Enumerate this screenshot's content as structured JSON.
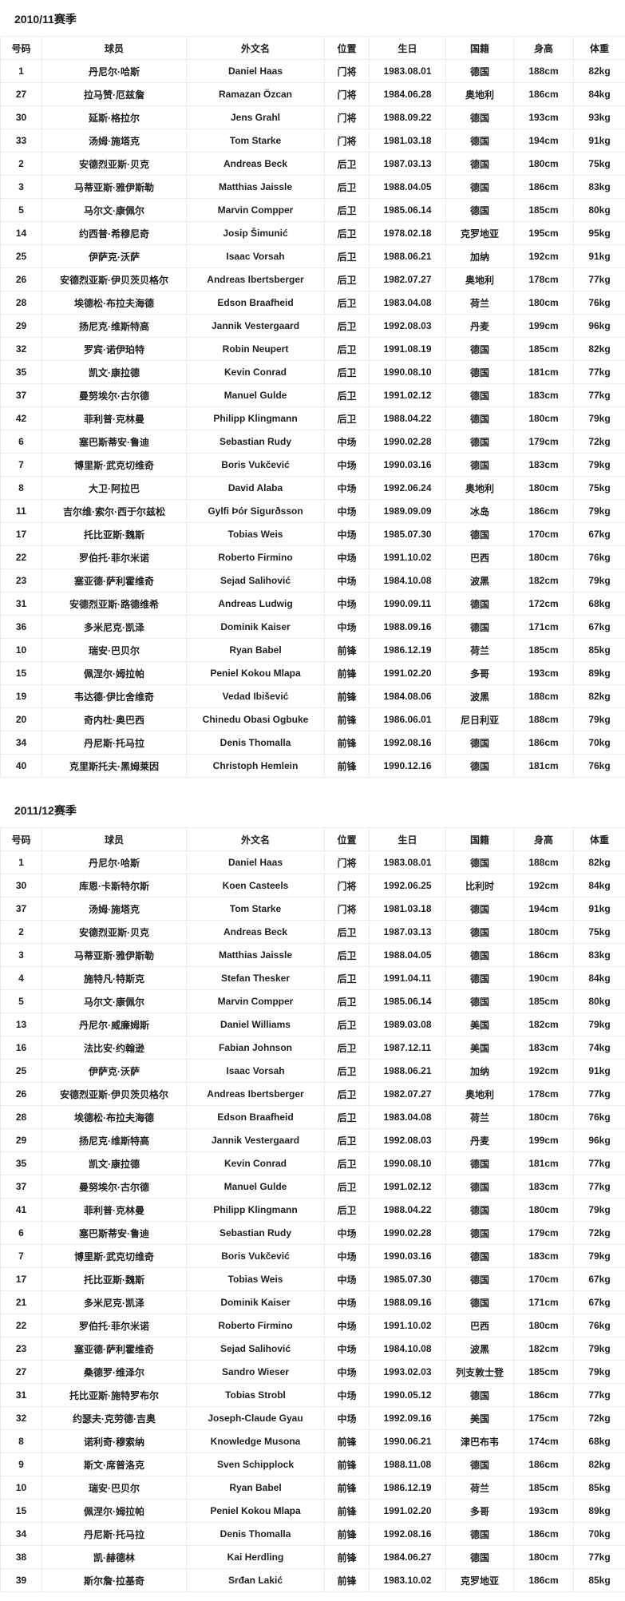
{
  "page": {
    "background": "#ffffff",
    "border_color": "#ececec",
    "text_color": "#1f1f1f"
  },
  "columns": [
    "号码",
    "球员",
    "外文名",
    "位置",
    "生日",
    "国籍",
    "身高",
    "体重"
  ],
  "sections": [
    {
      "title": "2010/11赛季",
      "rows": [
        [
          "1",
          "丹尼尔·哈斯",
          "Daniel Haas",
          "门将",
          "1983.08.01",
          "德国",
          "188cm",
          "82kg"
        ],
        [
          "27",
          "拉马赞·厄兹詹",
          "Ramazan Özcan",
          "门将",
          "1984.06.28",
          "奥地利",
          "186cm",
          "84kg"
        ],
        [
          "30",
          "延斯·格拉尔",
          "Jens Grahl",
          "门将",
          "1988.09.22",
          "德国",
          "193cm",
          "93kg"
        ],
        [
          "33",
          "汤姆·施塔克",
          "Tom Starke",
          "门将",
          "1981.03.18",
          "德国",
          "194cm",
          "91kg"
        ],
        [
          "2",
          "安德烈亚斯·贝克",
          "Andreas Beck",
          "后卫",
          "1987.03.13",
          "德国",
          "180cm",
          "75kg"
        ],
        [
          "3",
          "马蒂亚斯·雅伊斯勒",
          "Matthias Jaissle",
          "后卫",
          "1988.04.05",
          "德国",
          "186cm",
          "83kg"
        ],
        [
          "5",
          "马尔文·康佩尔",
          "Marvin Compper",
          "后卫",
          "1985.06.14",
          "德国",
          "185cm",
          "80kg"
        ],
        [
          "14",
          "约西普·希穆尼奇",
          "Josip Šimunić",
          "后卫",
          "1978.02.18",
          "克罗地亚",
          "195cm",
          "95kg"
        ],
        [
          "25",
          "伊萨克·沃萨",
          "Isaac Vorsah",
          "后卫",
          "1988.06.21",
          "加纳",
          "192cm",
          "91kg"
        ],
        [
          "26",
          "安德烈亚斯·伊贝茨贝格尔",
          "Andreas Ibertsberger",
          "后卫",
          "1982.07.27",
          "奥地利",
          "178cm",
          "77kg"
        ],
        [
          "28",
          "埃德松·布拉夫海德",
          "Edson Braafheid",
          "后卫",
          "1983.04.08",
          "荷兰",
          "180cm",
          "76kg"
        ],
        [
          "29",
          "扬尼克·维斯特高",
          "Jannik Vestergaard",
          "后卫",
          "1992.08.03",
          "丹麦",
          "199cm",
          "96kg"
        ],
        [
          "32",
          "罗宾·诺伊珀特",
          "Robin Neupert",
          "后卫",
          "1991.08.19",
          "德国",
          "185cm",
          "82kg"
        ],
        [
          "35",
          "凯文·康拉德",
          "Kevin Conrad",
          "后卫",
          "1990.08.10",
          "德国",
          "181cm",
          "77kg"
        ],
        [
          "37",
          "曼努埃尔·古尔德",
          "Manuel Gulde",
          "后卫",
          "1991.02.12",
          "德国",
          "183cm",
          "77kg"
        ],
        [
          "42",
          "菲利普·克林曼",
          "Philipp Klingmann",
          "后卫",
          "1988.04.22",
          "德国",
          "180cm",
          "79kg"
        ],
        [
          "6",
          "塞巴斯蒂安·鲁迪",
          "Sebastian Rudy",
          "中场",
          "1990.02.28",
          "德国",
          "179cm",
          "72kg"
        ],
        [
          "7",
          "博里斯·武克切维奇",
          "Boris Vukčević",
          "中场",
          "1990.03.16",
          "德国",
          "183cm",
          "79kg"
        ],
        [
          "8",
          "大卫·阿拉巴",
          "David Alaba",
          "中场",
          "1992.06.24",
          "奥地利",
          "180cm",
          "75kg"
        ],
        [
          "11",
          "吉尔维·索尔·西于尔兹松",
          "Gylfi Þór Sigurðsson",
          "中场",
          "1989.09.09",
          "冰岛",
          "186cm",
          "79kg"
        ],
        [
          "17",
          "托比亚斯·魏斯",
          "Tobias Weis",
          "中场",
          "1985.07.30",
          "德国",
          "170cm",
          "67kg"
        ],
        [
          "22",
          "罗伯托·菲尔米诺",
          "Roberto Firmino",
          "中场",
          "1991.10.02",
          "巴西",
          "180cm",
          "76kg"
        ],
        [
          "23",
          "塞亚德·萨利霍维奇",
          "Sejad Salihović",
          "中场",
          "1984.10.08",
          "波黑",
          "182cm",
          "79kg"
        ],
        [
          "31",
          "安德烈亚斯·路德维希",
          "Andreas Ludwig",
          "中场",
          "1990.09.11",
          "德国",
          "172cm",
          "68kg"
        ],
        [
          "36",
          "多米尼克·凯泽",
          "Dominik Kaiser",
          "中场",
          "1988.09.16",
          "德国",
          "171cm",
          "67kg"
        ],
        [
          "10",
          "瑞安·巴贝尔",
          "Ryan Babel",
          "前锋",
          "1986.12.19",
          "荷兰",
          "185cm",
          "85kg"
        ],
        [
          "15",
          "佩涅尔·姆拉帕",
          "Peniel Kokou Mlapa",
          "前锋",
          "1991.02.20",
          "多哥",
          "193cm",
          "89kg"
        ],
        [
          "19",
          "韦达德·伊比舍维奇",
          "Vedad Ibišević",
          "前锋",
          "1984.08.06",
          "波黑",
          "188cm",
          "82kg"
        ],
        [
          "20",
          "奇内杜·奥巴西",
          "Chinedu Obasi Ogbuke",
          "前锋",
          "1986.06.01",
          "尼日利亚",
          "188cm",
          "79kg"
        ],
        [
          "34",
          "丹尼斯·托马拉",
          "Denis Thomalla",
          "前锋",
          "1992.08.16",
          "德国",
          "186cm",
          "70kg"
        ],
        [
          "40",
          "克里斯托夫·黑姆莱因",
          "Christoph Hemlein",
          "前锋",
          "1990.12.16",
          "德国",
          "181cm",
          "76kg"
        ]
      ]
    },
    {
      "title": "2011/12赛季",
      "rows": [
        [
          "1",
          "丹尼尔·哈斯",
          "Daniel Haas",
          "门将",
          "1983.08.01",
          "德国",
          "188cm",
          "82kg"
        ],
        [
          "30",
          "库恩·卡斯特尔斯",
          "Koen Casteels",
          "门将",
          "1992.06.25",
          "比利时",
          "192cm",
          "84kg"
        ],
        [
          "37",
          "汤姆·施塔克",
          "Tom Starke",
          "门将",
          "1981.03.18",
          "德国",
          "194cm",
          "91kg"
        ],
        [
          "2",
          "安德烈亚斯·贝克",
          "Andreas Beck",
          "后卫",
          "1987.03.13",
          "德国",
          "180cm",
          "75kg"
        ],
        [
          "3",
          "马蒂亚斯·雅伊斯勒",
          "Matthias Jaissle",
          "后卫",
          "1988.04.05",
          "德国",
          "186cm",
          "83kg"
        ],
        [
          "4",
          "施特凡·特斯克",
          "Stefan Thesker",
          "后卫",
          "1991.04.11",
          "德国",
          "190cm",
          "84kg"
        ],
        [
          "5",
          "马尔文·康佩尔",
          "Marvin Compper",
          "后卫",
          "1985.06.14",
          "德国",
          "185cm",
          "80kg"
        ],
        [
          "13",
          "丹尼尔·威廉姆斯",
          "Daniel Williams",
          "后卫",
          "1989.03.08",
          "美国",
          "182cm",
          "79kg"
        ],
        [
          "16",
          "法比安·约翰逊",
          "Fabian Johnson",
          "后卫",
          "1987.12.11",
          "美国",
          "183cm",
          "74kg"
        ],
        [
          "25",
          "伊萨克·沃萨",
          "Isaac Vorsah",
          "后卫",
          "1988.06.21",
          "加纳",
          "192cm",
          "91kg"
        ],
        [
          "26",
          "安德烈亚斯·伊贝茨贝格尔",
          "Andreas Ibertsberger",
          "后卫",
          "1982.07.27",
          "奥地利",
          "178cm",
          "77kg"
        ],
        [
          "28",
          "埃德松·布拉夫海德",
          "Edson Braafheid",
          "后卫",
          "1983.04.08",
          "荷兰",
          "180cm",
          "76kg"
        ],
        [
          "29",
          "扬尼克·维斯特高",
          "Jannik Vestergaard",
          "后卫",
          "1992.08.03",
          "丹麦",
          "199cm",
          "96kg"
        ],
        [
          "35",
          "凯文·康拉德",
          "Kevin Conrad",
          "后卫",
          "1990.08.10",
          "德国",
          "181cm",
          "77kg"
        ],
        [
          "37",
          "曼努埃尔·古尔德",
          "Manuel Gulde",
          "后卫",
          "1991.02.12",
          "德国",
          "183cm",
          "77kg"
        ],
        [
          "41",
          "菲利普·克林曼",
          "Philipp Klingmann",
          "后卫",
          "1988.04.22",
          "德国",
          "180cm",
          "79kg"
        ],
        [
          "6",
          "塞巴斯蒂安·鲁迪",
          "Sebastian Rudy",
          "中场",
          "1990.02.28",
          "德国",
          "179cm",
          "72kg"
        ],
        [
          "7",
          "博里斯·武克切维奇",
          "Boris Vukčević",
          "中场",
          "1990.03.16",
          "德国",
          "183cm",
          "79kg"
        ],
        [
          "17",
          "托比亚斯·魏斯",
          "Tobias Weis",
          "中场",
          "1985.07.30",
          "德国",
          "170cm",
          "67kg"
        ],
        [
          "21",
          "多米尼克·凯泽",
          "Dominik Kaiser",
          "中场",
          "1988.09.16",
          "德国",
          "171cm",
          "67kg"
        ],
        [
          "22",
          "罗伯托·菲尔米诺",
          "Roberto Firmino",
          "中场",
          "1991.10.02",
          "巴西",
          "180cm",
          "76kg"
        ],
        [
          "23",
          "塞亚德·萨利霍维奇",
          "Sejad Salihović",
          "中场",
          "1984.10.08",
          "波黑",
          "182cm",
          "79kg"
        ],
        [
          "27",
          "桑德罗·维泽尔",
          "Sandro Wieser",
          "中场",
          "1993.02.03",
          "列支敦士登",
          "185cm",
          "79kg"
        ],
        [
          "31",
          "托比亚斯·施特罗布尔",
          "Tobias Strobl",
          "中场",
          "1990.05.12",
          "德国",
          "186cm",
          "77kg"
        ],
        [
          "32",
          "约瑟夫·克劳德·吉奥",
          "Joseph-Claude Gyau",
          "中场",
          "1992.09.16",
          "美国",
          "175cm",
          "72kg"
        ],
        [
          "8",
          "诺利奇·穆索纳",
          "Knowledge Musona",
          "前锋",
          "1990.06.21",
          "津巴布韦",
          "174cm",
          "68kg"
        ],
        [
          "9",
          "斯文·席普洛克",
          "Sven Schipplock",
          "前锋",
          "1988.11.08",
          "德国",
          "186cm",
          "82kg"
        ],
        [
          "10",
          "瑞安·巴贝尔",
          "Ryan Babel",
          "前锋",
          "1986.12.19",
          "荷兰",
          "185cm",
          "85kg"
        ],
        [
          "15",
          "佩涅尔·姆拉帕",
          "Peniel Kokou Mlapa",
          "前锋",
          "1991.02.20",
          "多哥",
          "193cm",
          "89kg"
        ],
        [
          "34",
          "丹尼斯·托马拉",
          "Denis Thomalla",
          "前锋",
          "1992.08.16",
          "德国",
          "186cm",
          "70kg"
        ],
        [
          "38",
          "凯·赫德林",
          "Kai Herdling",
          "前锋",
          "1984.06.27",
          "德国",
          "180cm",
          "77kg"
        ],
        [
          "39",
          "斯尔詹·拉基奇",
          "Srđan Lakić",
          "前锋",
          "1983.10.02",
          "克罗地亚",
          "186cm",
          "85kg"
        ]
      ]
    }
  ]
}
